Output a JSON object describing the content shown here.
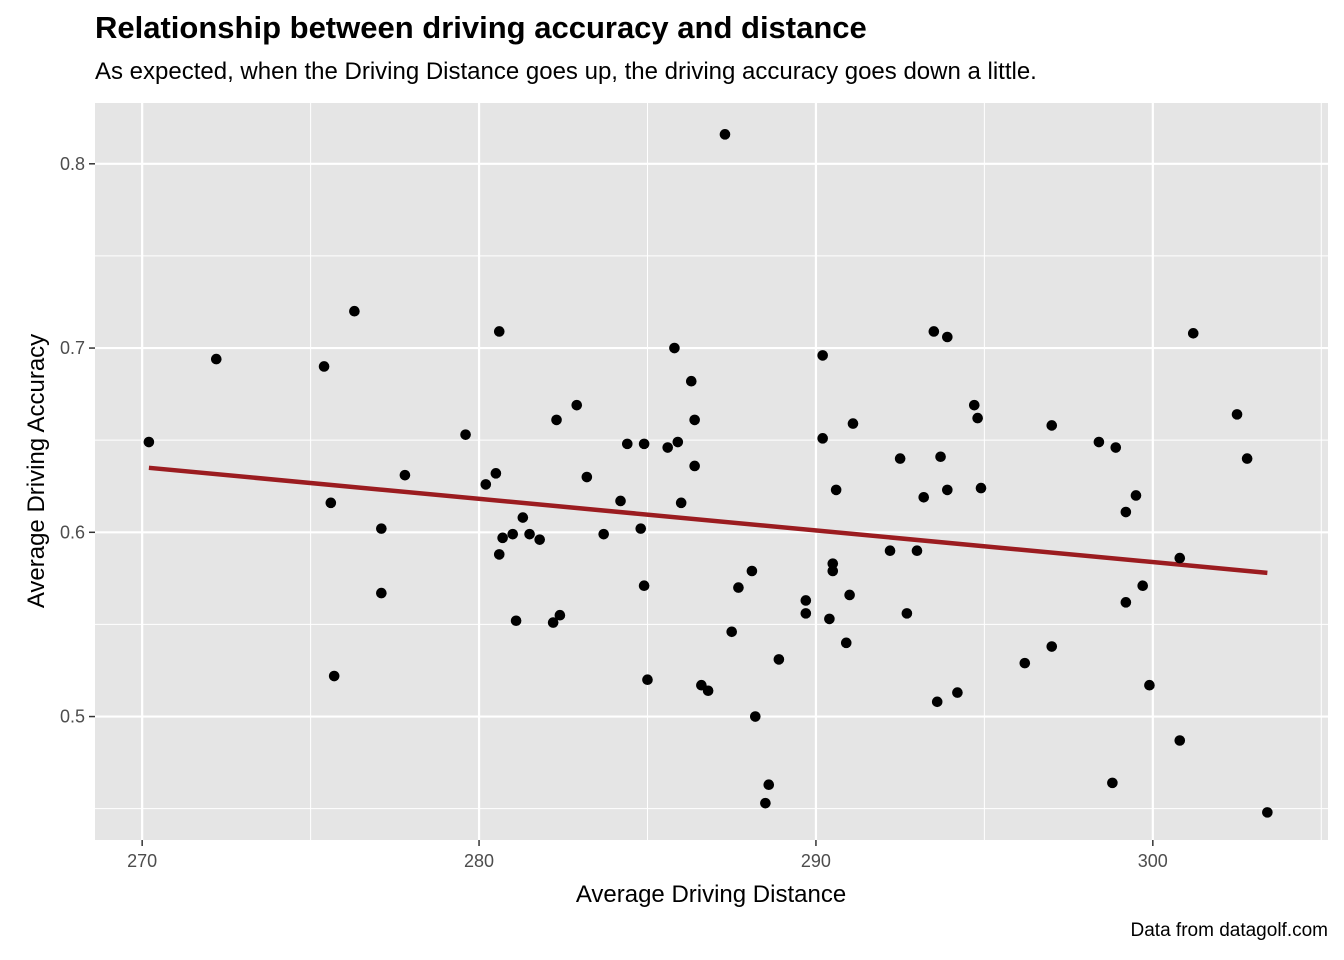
{
  "chart_data": {
    "type": "scatter",
    "title": "Relationship between driving accuracy and distance",
    "subtitle": "As expected, when the Driving Distance goes up, the driving accuracy goes down a little.",
    "caption": "Data from datagolf.com",
    "xlabel": "Average Driving Distance",
    "ylabel": "Average Driving Accuracy",
    "xlim": [
      268.6,
      305.2
    ],
    "ylim": [
      0.433,
      0.833
    ],
    "x_ticks": [
      270,
      280,
      290,
      300
    ],
    "x_tick_labels": [
      "270",
      "280",
      "290",
      "300"
    ],
    "y_ticks": [
      0.5,
      0.6,
      0.7,
      0.8
    ],
    "y_tick_labels": [
      "0.5",
      "0.6",
      "0.7",
      "0.8"
    ],
    "grid": true,
    "colors": {
      "panel": "#e5e5e5",
      "grid": "#ffffff",
      "point": "#000000",
      "trend": "#9b1c20"
    },
    "trend_line": {
      "x": [
        270.2,
        303.4
      ],
      "y": [
        0.635,
        0.578
      ]
    },
    "points": [
      [
        270.2,
        0.649
      ],
      [
        272.2,
        0.694
      ],
      [
        275.4,
        0.69
      ],
      [
        275.6,
        0.616
      ],
      [
        275.7,
        0.522
      ],
      [
        276.3,
        0.72
      ],
      [
        277.1,
        0.602
      ],
      [
        277.1,
        0.567
      ],
      [
        277.8,
        0.631
      ],
      [
        279.6,
        0.653
      ],
      [
        280.2,
        0.626
      ],
      [
        280.5,
        0.632
      ],
      [
        280.6,
        0.709
      ],
      [
        280.6,
        0.588
      ],
      [
        280.7,
        0.597
      ],
      [
        281.0,
        0.599
      ],
      [
        281.1,
        0.552
      ],
      [
        281.3,
        0.608
      ],
      [
        281.5,
        0.599
      ],
      [
        281.8,
        0.596
      ],
      [
        282.2,
        0.551
      ],
      [
        282.3,
        0.661
      ],
      [
        282.4,
        0.555
      ],
      [
        282.9,
        0.669
      ],
      [
        283.2,
        0.63
      ],
      [
        283.7,
        0.599
      ],
      [
        284.2,
        0.617
      ],
      [
        284.4,
        0.648
      ],
      [
        284.8,
        0.602
      ],
      [
        284.9,
        0.648
      ],
      [
        284.9,
        0.571
      ],
      [
        285.0,
        0.52
      ],
      [
        285.6,
        0.646
      ],
      [
        285.8,
        0.7
      ],
      [
        285.9,
        0.649
      ],
      [
        286.0,
        0.616
      ],
      [
        286.3,
        0.682
      ],
      [
        286.4,
        0.661
      ],
      [
        286.4,
        0.636
      ],
      [
        286.6,
        0.517
      ],
      [
        286.8,
        0.514
      ],
      [
        287.3,
        0.816
      ],
      [
        287.5,
        0.546
      ],
      [
        287.7,
        0.57
      ],
      [
        288.1,
        0.579
      ],
      [
        288.2,
        0.5
      ],
      [
        288.5,
        0.453
      ],
      [
        288.6,
        0.463
      ],
      [
        288.9,
        0.531
      ],
      [
        289.7,
        0.563
      ],
      [
        289.7,
        0.556
      ],
      [
        290.2,
        0.696
      ],
      [
        290.2,
        0.651
      ],
      [
        290.4,
        0.553
      ],
      [
        290.5,
        0.583
      ],
      [
        290.5,
        0.579
      ],
      [
        290.6,
        0.623
      ],
      [
        290.9,
        0.54
      ],
      [
        291.0,
        0.566
      ],
      [
        291.1,
        0.659
      ],
      [
        292.2,
        0.59
      ],
      [
        292.5,
        0.64
      ],
      [
        292.7,
        0.556
      ],
      [
        293.0,
        0.59
      ],
      [
        293.2,
        0.619
      ],
      [
        293.5,
        0.709
      ],
      [
        293.6,
        0.508
      ],
      [
        293.7,
        0.641
      ],
      [
        293.9,
        0.706
      ],
      [
        293.9,
        0.623
      ],
      [
        294.2,
        0.513
      ],
      [
        294.7,
        0.669
      ],
      [
        294.8,
        0.662
      ],
      [
        294.9,
        0.624
      ],
      [
        296.2,
        0.529
      ],
      [
        297.0,
        0.658
      ],
      [
        297.0,
        0.538
      ],
      [
        298.4,
        0.649
      ],
      [
        298.8,
        0.464
      ],
      [
        298.9,
        0.646
      ],
      [
        299.2,
        0.611
      ],
      [
        299.2,
        0.562
      ],
      [
        299.5,
        0.62
      ],
      [
        299.7,
        0.571
      ],
      [
        299.9,
        0.517
      ],
      [
        300.8,
        0.586
      ],
      [
        300.8,
        0.487
      ],
      [
        301.2,
        0.708
      ],
      [
        302.5,
        0.664
      ],
      [
        302.8,
        0.64
      ],
      [
        303.4,
        0.448
      ]
    ]
  }
}
